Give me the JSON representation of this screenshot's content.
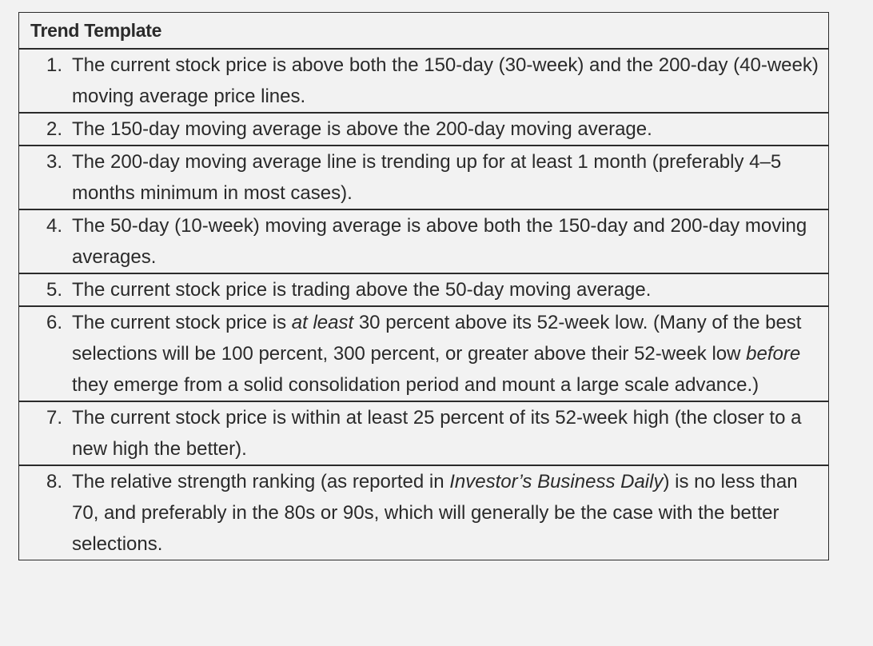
{
  "table": {
    "title": "Trend Template",
    "items": [
      {
        "number": "1.",
        "segments": [
          {
            "text": "The current stock price is above both the 150-day (30-week) and the 200-day (40-week) moving average price lines.",
            "italic": false
          }
        ]
      },
      {
        "number": "2.",
        "segments": [
          {
            "text": "The 150-day moving average is above the 200-day moving average.",
            "italic": false
          }
        ]
      },
      {
        "number": "3.",
        "segments": [
          {
            "text": "The 200-day moving average line is trending up for at least 1 month (preferably 4–5 months minimum in most cases).",
            "italic": false
          }
        ]
      },
      {
        "number": "4.",
        "segments": [
          {
            "text": "The 50-day (10-week) moving average is above both the 150-day and 200-day moving averages.",
            "italic": false
          }
        ]
      },
      {
        "number": "5.",
        "segments": [
          {
            "text": "The current stock price is trading above the 50-day moving average.",
            "italic": false
          }
        ]
      },
      {
        "number": "6.",
        "segments": [
          {
            "text": "The current stock price is ",
            "italic": false
          },
          {
            "text": "at least",
            "italic": true
          },
          {
            "text": " 30 percent above its 52-week low. (Many of the best selections will be 100 percent, 300 percent, or greater above their 52-week low ",
            "italic": false
          },
          {
            "text": "before",
            "italic": true
          },
          {
            "text": " they emerge from a solid consolidation period and mount a large scale advance.)",
            "italic": false
          }
        ]
      },
      {
        "number": "7.",
        "segments": [
          {
            "text": "The current stock price is within at least 25 percent of its 52-week high (the closer to a new high the better).",
            "italic": false
          }
        ]
      },
      {
        "number": "8.",
        "segments": [
          {
            "text": "The relative strength ranking (as reported in ",
            "italic": false
          },
          {
            "text": "Investor’s Business Daily",
            "italic": true
          },
          {
            "text": ") is no less than 70, and preferably in the 80s or 90s, which will generally be the case with the better selections.",
            "italic": false
          }
        ]
      }
    ]
  }
}
